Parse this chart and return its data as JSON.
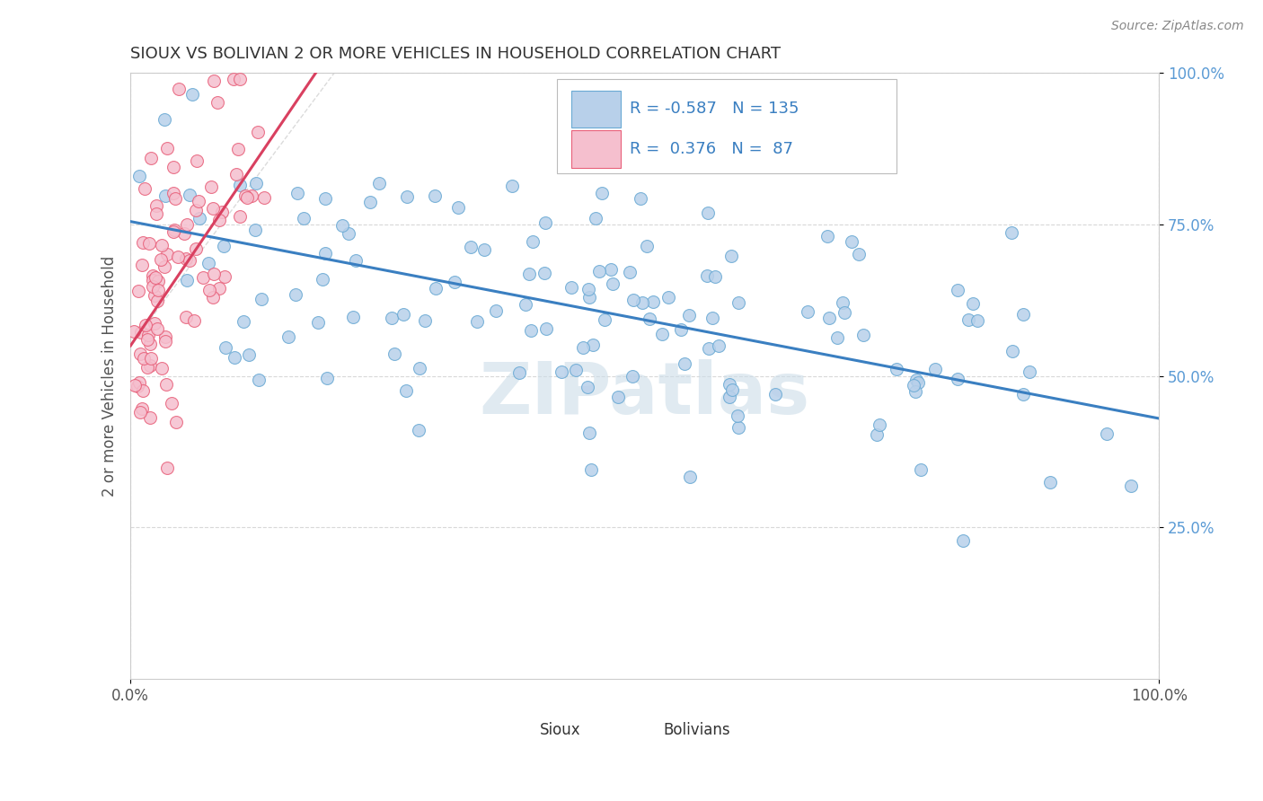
{
  "title": "SIOUX VS BOLIVIAN 2 OR MORE VEHICLES IN HOUSEHOLD CORRELATION CHART",
  "source_text": "Source: ZipAtlas.com",
  "ylabel": "2 or more Vehicles in Household",
  "xlim": [
    0.0,
    1.0
  ],
  "ylim": [
    0.0,
    1.0
  ],
  "xtick_positions": [
    0.0,
    1.0
  ],
  "xtick_labels": [
    "0.0%",
    "100.0%"
  ],
  "ytick_positions": [
    0.25,
    0.5,
    0.75,
    1.0
  ],
  "ytick_labels": [
    "25.0%",
    "50.0%",
    "75.0%",
    "100.0%"
  ],
  "blue_R": -0.587,
  "blue_N": 135,
  "pink_R": 0.376,
  "pink_N": 87,
  "blue_color": "#b8d0ea",
  "pink_color": "#f5bfce",
  "blue_edge_color": "#6aaad4",
  "pink_edge_color": "#e8607a",
  "blue_line_color": "#3a7fc1",
  "pink_line_color": "#d94060",
  "watermark": "ZIPatlas",
  "watermark_color": "#ccdde8",
  "background_color": "#ffffff",
  "grid_color": "#d8d8d8",
  "title_color": "#333333",
  "axis_label_color": "#5b9bd5",
  "blue_trend_x0": 0.0,
  "blue_trend_y0": 0.755,
  "blue_trend_x1": 1.0,
  "blue_trend_y1": 0.43,
  "pink_trend_x0": 0.0,
  "pink_trend_y0": 0.55,
  "pink_trend_x1": 0.18,
  "pink_trend_y1": 1.0,
  "diag_line_color": "#cccccc"
}
